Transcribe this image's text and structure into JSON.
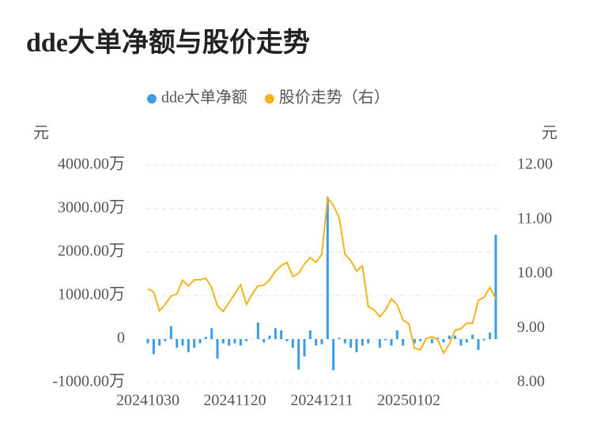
{
  "chart_data": {
    "type": "bar-line",
    "title": "dde大单净额与股价走势",
    "y_label": "元",
    "y2_label": "元",
    "categories": [
      "20241030",
      null,
      null,
      null,
      null,
      null,
      null,
      null,
      null,
      null,
      null,
      null,
      null,
      null,
      null,
      "20241120",
      null,
      null,
      null,
      null,
      null,
      null,
      null,
      null,
      null,
      null,
      null,
      null,
      null,
      null,
      "20241211",
      null,
      null,
      null,
      null,
      null,
      null,
      null,
      null,
      null,
      null,
      null,
      null,
      null,
      null,
      "20250102",
      null,
      null,
      null,
      null,
      null,
      null,
      null,
      null,
      null,
      null,
      null,
      null,
      null,
      null,
      null
    ],
    "series": [
      {
        "name": "dde大单净额",
        "color": "#3a9ee6",
        "kind": "bar",
        "axis": "y",
        "values": [
          -100,
          -350,
          -150,
          -50,
          300,
          -200,
          -150,
          -300,
          -200,
          -100,
          50,
          250,
          -450,
          -100,
          -150,
          -100,
          -150,
          -50,
          0,
          380,
          -80,
          80,
          250,
          200,
          -50,
          -200,
          -700,
          -400,
          200,
          -150,
          -120,
          3270,
          -720,
          30,
          -100,
          -200,
          -300,
          -150,
          -100,
          0,
          -200,
          -30,
          -150,
          200,
          -150,
          0,
          -100,
          -50,
          0,
          -100,
          30,
          -80,
          80,
          80,
          -150,
          -80,
          100,
          -250,
          -30,
          150,
          2400
        ]
      },
      {
        "name": "股价走势（右）",
        "color": "#f5b31b",
        "kind": "line",
        "axis": "y2",
        "values": [
          9.72,
          9.67,
          9.32,
          9.44,
          9.59,
          9.63,
          9.88,
          9.78,
          9.89,
          9.89,
          9.92,
          9.75,
          9.41,
          9.31,
          9.47,
          9.63,
          9.8,
          9.44,
          9.63,
          9.78,
          9.79,
          9.89,
          10.05,
          10.15,
          10.21,
          9.95,
          10.01,
          10.18,
          10.3,
          10.21,
          10.36,
          11.4,
          11.26,
          11.03,
          10.36,
          10.24,
          10.05,
          10.15,
          9.4,
          9.34,
          9.21,
          9.34,
          9.54,
          9.43,
          9.15,
          9.08,
          8.63,
          8.6,
          8.81,
          8.84,
          8.79,
          8.54,
          8.71,
          8.96,
          8.99,
          9.09,
          9.09,
          9.51,
          9.57,
          9.75,
          9.54
        ]
      }
    ],
    "ylim": [
      -1000,
      4000
    ],
    "yticks": [
      {
        "value": -1000,
        "label": "-1000.00万"
      },
      0,
      {
        "value": 1000,
        "label": "1000.00万"
      },
      {
        "value": 2000,
        "label": "2000.00万"
      },
      {
        "value": 3000,
        "label": "3000.00万"
      },
      {
        "value": 4000,
        "label": "4000.00万"
      }
    ],
    "y2lim": [
      8,
      12
    ],
    "y2ticks": [
      {
        "value": 8,
        "label": "8.00"
      },
      {
        "value": 9,
        "label": "9.00"
      },
      {
        "value": 10,
        "label": "10.00"
      },
      {
        "value": 11,
        "label": "11.00"
      },
      {
        "value": 12,
        "label": "12.00"
      }
    ],
    "grid": true
  }
}
